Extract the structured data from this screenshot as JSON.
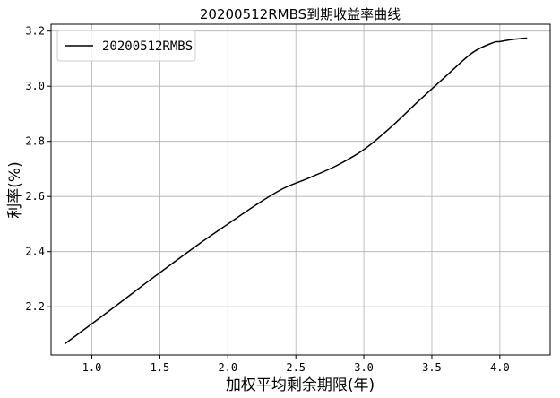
{
  "chart_data": {
    "type": "line",
    "title": "20200512RMBS到期收益率曲线",
    "xlabel": "加权平均剩余期限(年)",
    "ylabel": "利率(%)",
    "xlim": [
      0.7,
      4.37
    ],
    "ylim": [
      2.025,
      3.225
    ],
    "xticks": [
      1.0,
      1.5,
      2.0,
      2.5,
      3.0,
      3.5,
      4.0
    ],
    "xtick_labels": [
      "1.0",
      "1.5",
      "2.0",
      "2.5",
      "3.0",
      "3.5",
      "4.0"
    ],
    "yticks": [
      2.2,
      2.4,
      2.6,
      2.8,
      3.0,
      3.2
    ],
    "ytick_labels": [
      "2.2",
      "2.4",
      "2.6",
      "2.8",
      "3.0",
      "3.2"
    ],
    "grid": true,
    "legend_position": "top-left",
    "series": [
      {
        "name": "20200512RMBS",
        "color": "#000000",
        "x": [
          0.8,
          1.0,
          1.2,
          1.4,
          1.6,
          1.8,
          2.0,
          2.2,
          2.4,
          2.6,
          2.8,
          3.0,
          3.2,
          3.4,
          3.6,
          3.8,
          3.95,
          4.0,
          4.1,
          4.2
        ],
        "y": [
          2.065,
          2.138,
          2.212,
          2.287,
          2.36,
          2.432,
          2.5,
          2.567,
          2.627,
          2.668,
          2.712,
          2.77,
          2.852,
          2.945,
          3.035,
          3.122,
          3.158,
          3.162,
          3.17,
          3.175
        ]
      }
    ]
  }
}
